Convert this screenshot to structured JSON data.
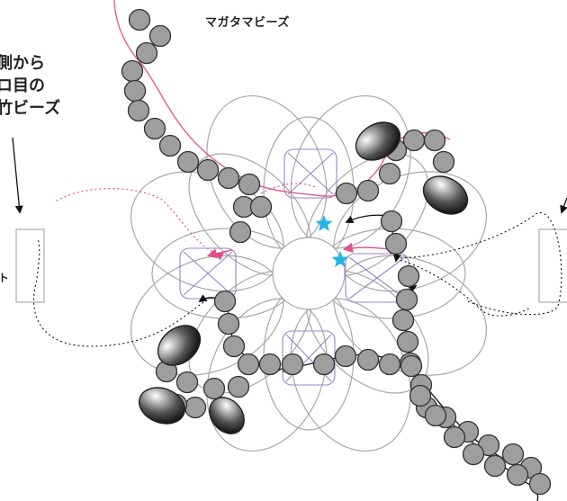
{
  "title": "マガタマビーズ",
  "note": {
    "line1": "側から",
    "line2": "ロ目の",
    "line3": "竹ビーズ"
  },
  "side_label": "ト",
  "colors": {
    "outline": "#a8a8a8",
    "cross_square": "#9a86c4",
    "pink_thread": "#e0508f",
    "black_thread": "#111111",
    "bead_fill": "#9e9e9e",
    "star": "#25b4e6"
  }
}
